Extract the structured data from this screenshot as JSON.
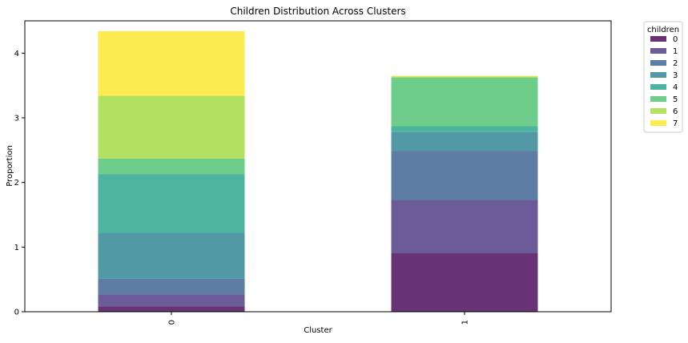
{
  "chart_data": {
    "type": "bar",
    "stacked": true,
    "title": "Children Distribution Across Clusters",
    "xlabel": "Cluster",
    "ylabel": "Proportion",
    "categories": [
      "0",
      "1"
    ],
    "ylim": [
      0,
      4.5
    ],
    "yticks": [
      0,
      1,
      2,
      3,
      4
    ],
    "grid": false,
    "legend_title": "children",
    "legend_position": "upper-right-outside",
    "series": [
      {
        "name": "0",
        "color": "#440154",
        "values": [
          0.08,
          0.91
        ]
      },
      {
        "name": "1",
        "color": "#46327e",
        "values": [
          0.19,
          0.82
        ]
      },
      {
        "name": "2",
        "color": "#365c8d",
        "values": [
          0.24,
          0.76
        ]
      },
      {
        "name": "3",
        "color": "#277f8e",
        "values": [
          0.71,
          0.29
        ]
      },
      {
        "name": "4",
        "color": "#1fa187",
        "values": [
          0.91,
          0.09
        ]
      },
      {
        "name": "5",
        "color": "#4ac16d",
        "values": [
          0.24,
          0.75
        ]
      },
      {
        "name": "6",
        "color": "#a0da39",
        "values": [
          0.97,
          0.02
        ]
      },
      {
        "name": "7",
        "color": "#fde725",
        "values": [
          1.0,
          0.01
        ]
      }
    ]
  }
}
